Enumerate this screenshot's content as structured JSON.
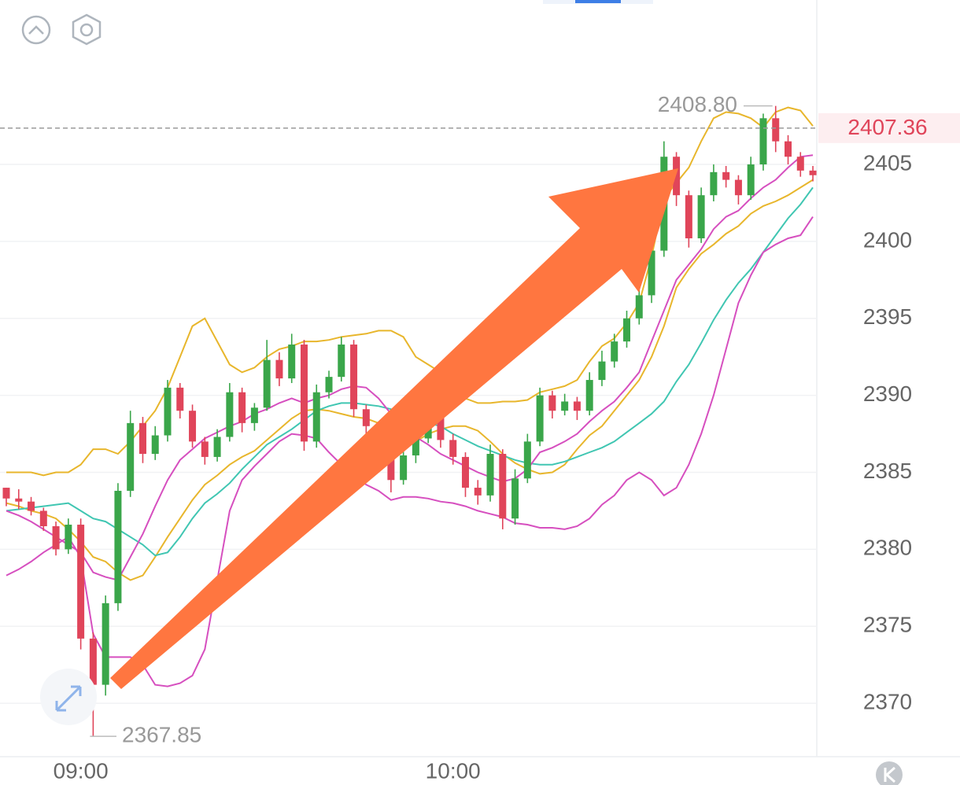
{
  "chart_data": {
    "type": "candlestick",
    "categories": [
      null,
      null,
      null,
      null,
      null,
      null,
      "09:00",
      null,
      null,
      null,
      null,
      null,
      null,
      null,
      null,
      null,
      null,
      null,
      null,
      null,
      null,
      null,
      null,
      null,
      null,
      null,
      null,
      null,
      null,
      null,
      null,
      null,
      null,
      null,
      null,
      null,
      "10:00",
      null,
      null,
      null,
      null,
      null,
      null,
      null,
      null,
      null,
      null,
      null,
      null,
      null,
      null,
      null,
      null,
      null,
      null,
      null,
      null,
      null,
      null,
      null,
      null,
      null,
      null,
      null,
      null,
      null
    ],
    "open": [
      2384,
      2383.3,
      2383.1,
      2382.5,
      2381.5,
      2380,
      2381.6,
      2374.2,
      2371.2,
      2376.5,
      2383.8,
      2388.2,
      2386.2,
      2387.4,
      2390.5,
      2389,
      2387,
      2386,
      2387.3,
      2390.2,
      2388.2,
      2389.2,
      2392.3,
      2391.1,
      2393.3,
      2387,
      2390.2,
      2391.2,
      2393.3,
      2389.1,
      2388,
      2386,
      2384.5,
      2386.1,
      2387.2,
      2389,
      2387.1,
      2386,
      2384,
      2383.5,
      2386.2,
      2382,
      2384.6,
      2387,
      2390,
      2389,
      2389.6,
      2389,
      2391,
      2392.2,
      2393.5,
      2395,
      2396.5,
      2399.4,
      2405.5,
      2403,
      2400.2,
      2403,
      2404.5,
      2404,
      2403,
      2405,
      2408,
      2406.5,
      2405.5,
      2404.6
    ],
    "high": [
      2384,
      2383.9,
      2383.4,
      2382.7,
      2381.8,
      2382,
      2382,
      2374.6,
      2377,
      2384.3,
      2389,
      2388.6,
      2388,
      2391,
      2390.8,
      2389.4,
      2387.3,
      2387.8,
      2390.8,
      2390.5,
      2389.5,
      2393.6,
      2392.8,
      2394,
      2393.6,
      2390.7,
      2391.6,
      2393.8,
      2393.6,
      2389.4,
      2388.3,
      2386.2,
      2386.8,
      2387.8,
      2389.5,
      2389.3,
      2387.5,
      2386.3,
      2384.5,
      2386.8,
      2386.5,
      2385.2,
      2387.5,
      2390.5,
      2390.3,
      2390.1,
      2389.9,
      2391.5,
      2392.9,
      2394,
      2395.5,
      2397.2,
      2400.2,
      2406.5,
      2405.8,
      2403.3,
      2403.5,
      2405,
      2404.9,
      2404.3,
      2405.5,
      2408.3,
      2408.8,
      2406.9,
      2405.8,
      2404.9
    ],
    "low": [
      2382.8,
      2382.6,
      2382.2,
      2381.2,
      2379.6,
      2379.7,
      2373.5,
      2367.85,
      2370.5,
      2376,
      2383.4,
      2385.6,
      2385.8,
      2387,
      2388.5,
      2386.6,
      2385.5,
      2385.7,
      2387,
      2387.6,
      2387.7,
      2389,
      2390.6,
      2390.8,
      2386.4,
      2386.6,
      2389.8,
      2390.9,
      2388.6,
      2387.5,
      2385.4,
      2383.7,
      2384.2,
      2385.6,
      2386.9,
      2386.6,
      2385.5,
      2383.4,
      2382.9,
      2383.1,
      2381.3,
      2381.6,
      2384.3,
      2386.7,
      2388.5,
      2388.7,
      2388.4,
      2388.7,
      2390.6,
      2391.8,
      2393.1,
      2394.6,
      2396,
      2399,
      2402.3,
      2399.6,
      2399.9,
      2402.6,
      2403.5,
      2402.4,
      2402.7,
      2404.6,
      2405.8,
      2405,
      2404.2,
      2403.9
    ],
    "close": [
      2383.3,
      2383.1,
      2382.5,
      2381.5,
      2380,
      2381.6,
      2374.2,
      2371.2,
      2376.5,
      2383.8,
      2388.2,
      2386.2,
      2387.4,
      2390.5,
      2389,
      2387,
      2386,
      2387.3,
      2390.2,
      2388.2,
      2389.2,
      2392.3,
      2391.1,
      2393.3,
      2387,
      2390.2,
      2391.2,
      2393.3,
      2389.1,
      2388,
      2386,
      2384.5,
      2386.1,
      2387.2,
      2389,
      2387.1,
      2386,
      2384,
      2383.5,
      2386.2,
      2382,
      2384.6,
      2387,
      2390,
      2389,
      2389.6,
      2389,
      2391,
      2392.2,
      2393.5,
      2395,
      2396.5,
      2399.4,
      2405.5,
      2403,
      2400.2,
      2403,
      2404.5,
      2404,
      2403,
      2405,
      2408,
      2406.5,
      2405.5,
      2404.6,
      2404.3
    ],
    "up_color": "#3aa64a",
    "down_color": "#e0455a",
    "series": [
      {
        "color": "#e8b62c",
        "values": [
          2385,
          2385,
          2385,
          2384.8,
          2385,
          2385,
          2385.5,
          2386.5,
          2386.5,
          2386.2,
          2387,
          2388,
          2389,
          2390.5,
          2392.5,
          2394.5,
          2395,
          2393.5,
          2392,
          2391.5,
          2391.8,
          2392.5,
          2393,
          2393.2,
          2393.5,
          2393.5,
          2393.6,
          2393.8,
          2393.9,
          2394,
          2394.2,
          2394.2,
          2393.8,
          2392.5,
          2392,
          2391.5,
          2391,
          2389.8,
          2389.5,
          2389.5,
          2389.6,
          2389.6,
          2389.7,
          2390.2,
          2390.4,
          2390.6,
          2391,
          2392.2,
          2393.2,
          2393.7,
          2394.7,
          2396,
          2399,
          2402.8,
          2403.8,
          2404.8,
          2406.5,
          2408,
          2408.4,
          2408.3,
          2408,
          2407.4,
          2408.4,
          2408.7,
          2408.5,
          2407.5
        ]
      },
      {
        "color": "#e8b62c",
        "values": [
          2383,
          2382.8,
          2382.5,
          2382.3,
          2382,
          2381.3,
          2380.5,
          2379.5,
          2379.2,
          2378.5,
          2378,
          2378.3,
          2379.5,
          2380.8,
          2382,
          2383.2,
          2384.2,
          2384.8,
          2385.5,
          2386,
          2386.4,
          2387.1,
          2387.8,
          2388.5,
          2389,
          2389.1,
          2389,
          2388.8,
          2388.6,
          2388.5,
          2388.2,
          2387.8,
          2387.4,
          2387,
          2387.5,
          2387.8,
          2388,
          2388,
          2387.7,
          2387,
          2386.2,
          2385.6,
          2385.2,
          2384.9,
          2385,
          2385.5,
          2386.5,
          2387.4,
          2388,
          2389,
          2390,
          2391,
          2392.5,
          2394.5,
          2397,
          2398.2,
          2399.2,
          2399.8,
          2400.5,
          2401,
          2401.8,
          2402.3,
          2402.6,
          2403,
          2403.5,
          2404
        ]
      },
      {
        "color": "#40c6b2",
        "values": [
          2382.5,
          2382.6,
          2382.7,
          2382.8,
          2382.9,
          2383,
          2382.5,
          2382,
          2381.8,
          2381.3,
          2380.8,
          2380.3,
          2379.6,
          2379.8,
          2380.8,
          2382,
          2383,
          2383.6,
          2384.3,
          2385.2,
          2386,
          2386.8,
          2387.3,
          2387.8,
          2388.4,
          2389,
          2389.3,
          2389.5,
          2389.5,
          2389.4,
          2389.3,
          2389.1,
          2388.8,
          2388.5,
          2388.2,
          2388,
          2387.5,
          2387.1,
          2386.7,
          2386.4,
          2386.1,
          2385.8,
          2385.6,
          2385.5,
          2385.5,
          2385.7,
          2386,
          2386.3,
          2386.6,
          2387,
          2387.6,
          2388.2,
          2388.8,
          2389.6,
          2390.9,
          2392,
          2393.4,
          2394.9,
          2396.2,
          2397.3,
          2398.2,
          2399.3,
          2400.4,
          2401.5,
          2402.4,
          2403.5
        ]
      },
      {
        "color": "#d64fbf",
        "values": [
          2382.5,
          2382.2,
          2381.8,
          2381.3,
          2380.8,
          2380.3,
          2379.8,
          2378.5,
          2378.2,
          2378,
          2379.5,
          2381,
          2382.8,
          2384.5,
          2385.8,
          2386.5,
          2387.2,
          2387.6,
          2388,
          2388.3,
          2388.8,
          2389.1,
          2389.5,
          2389.8,
          2389.5,
          2389.8,
          2390,
          2390.4,
          2390.6,
          2390.5,
          2389.8,
          2388.8,
          2387.8,
          2387.3,
          2386.8,
          2386.2,
          2385.8,
          2385.4,
          2385,
          2384.7,
          2384.4,
          2384.6,
          2385.2,
          2386.3,
          2386.6,
          2387,
          2387.5,
          2388.3,
          2389,
          2389.6,
          2390.5,
          2391.5,
          2393.5,
          2395.5,
          2397.5,
          2398.5,
          2399.5,
          2400.8,
          2401.6,
          2402,
          2402.8,
          2403.5,
          2404,
          2404.8,
          2405.5,
          2405.6
        ]
      },
      {
        "color": "#d64fbf",
        "values": [
          2378.3,
          2378.7,
          2379.2,
          2379.8,
          2380.3,
          2380.8,
          2379.5,
          2374.5,
          2373,
          2373,
          2373,
          2372.5,
          2371.2,
          2371.1,
          2371.3,
          2371.8,
          2373.5,
          2378,
          2382.5,
          2384.5,
          2385.4,
          2386.2,
          2387,
          2387.5,
          2387.4,
          2387.2,
          2386.3,
          2385.5,
          2384.8,
          2384.2,
          2383.8,
          2383.2,
          2383.4,
          2383.4,
          2383.3,
          2383.1,
          2383,
          2382.8,
          2382.5,
          2382.3,
          2382.1,
          2381.7,
          2381.6,
          2381.4,
          2381.4,
          2381.3,
          2381.5,
          2382,
          2382.9,
          2383.5,
          2384.5,
          2385,
          2384.5,
          2383.5,
          2384,
          2385.5,
          2387.5,
          2390,
          2393,
          2396,
          2397.8,
          2399.3,
          2399.8,
          2400.2,
          2400.4,
          2401.6
        ]
      }
    ],
    "ylim": [
      2366.53,
      2415.68
    ],
    "yticks": [
      2370,
      2375,
      2380,
      2385,
      2390,
      2395,
      2400,
      2405
    ],
    "grid": true,
    "last_price": 2407.36,
    "max_annotation": {
      "value": 2408.8,
      "label": "2408.80"
    },
    "min_annotation": 2367.85
  }
}
